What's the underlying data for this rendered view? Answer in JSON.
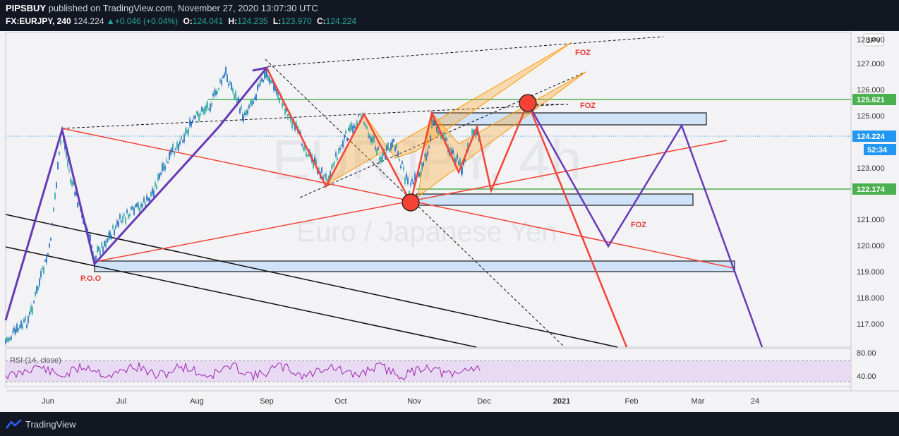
{
  "header": {
    "author": "PIPSBUY",
    "published_text": "published on TradingView.com, November 27, 2020 13:07:30 UTC"
  },
  "ohlc": {
    "symbol": "FX:EURJPY, 240",
    "last": "124.224",
    "change": "+0.046 (+0.04%)",
    "open_label": "O:",
    "open": "124.041",
    "high_label": "H:",
    "high": "124.235",
    "low_label": "L:",
    "low": "123.970",
    "close_label": "C:",
    "close": "124.224"
  },
  "watermark": {
    "symbol": "EURJPY, 4h",
    "name": "Euro / Japanese Yen"
  },
  "price_axis": {
    "currency": "JPY",
    "ticks": [
      "128.000",
      "127.000",
      "126.000",
      "125.000",
      "123.000",
      "121.000",
      "120.000",
      "119.000",
      "118.000",
      "117.000"
    ],
    "tag_resistance": "125.621",
    "tag_last": "124.224",
    "tag_countdown": "52:34",
    "tag_support": "122.174"
  },
  "time_axis": {
    "labels": [
      "Jun",
      "Jul",
      "Aug",
      "Sep",
      "Oct",
      "Nov",
      "Dec",
      "2021",
      "Feb",
      "Mar",
      "24"
    ]
  },
  "annotations": {
    "foz_1": "FOZ",
    "foz_2": "FOZ",
    "foz_3": "FOZ",
    "poo": "P.O.O"
  },
  "rsi": {
    "label": "RSI (14, close)",
    "ticks": [
      "80.00",
      "40.00"
    ]
  },
  "colors": {
    "background": "#131722",
    "chart_bg": "#f3f3f6",
    "up_candle": "#26a69a",
    "down_candle": "#1565c0",
    "purple_line": "#673ab7",
    "red_line": "#f44336",
    "green_line": "#4caf50",
    "orange_fill": "#ff9800",
    "zone_fill": "#cfe2f7",
    "rsi_line": "#9c27b0"
  },
  "footer": {
    "brand": "TradingView"
  }
}
